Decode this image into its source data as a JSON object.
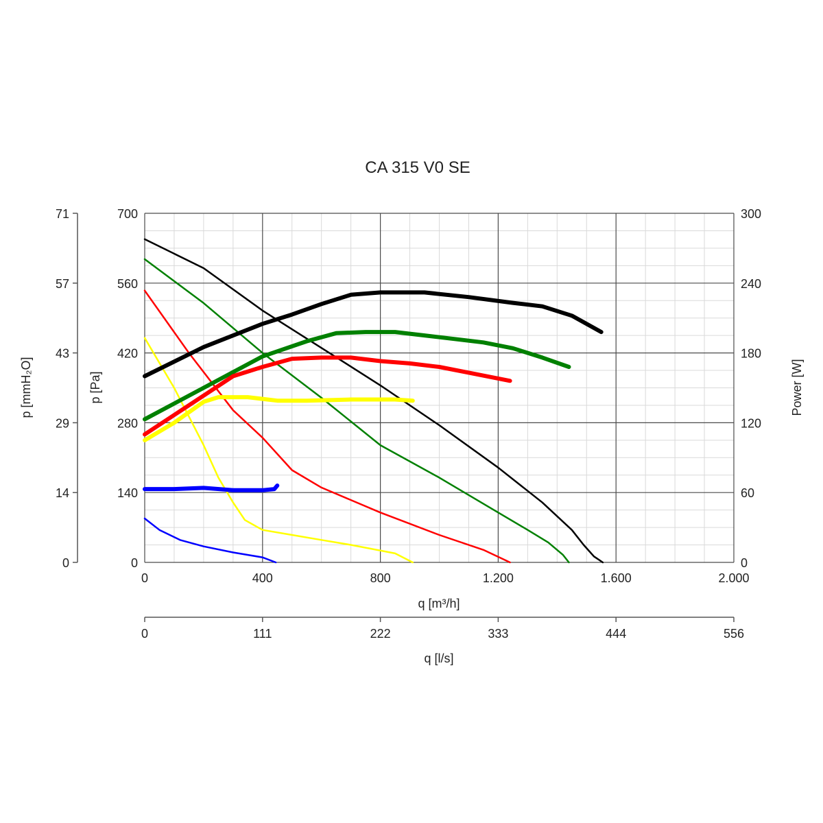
{
  "chart_data": {
    "type": "line",
    "title": "CA 315 V0 SE",
    "x_axis": {
      "label": "q [m³/h]",
      "range": [
        0,
        2000
      ],
      "ticks": [
        0,
        400,
        800,
        1200,
        1600,
        2000
      ],
      "tick_labels": [
        "0",
        "400",
        "800",
        "1.200",
        "1.600",
        "2.000"
      ]
    },
    "x2_axis": {
      "label": "q [l/s]",
      "tick_labels": [
        "0",
        "111",
        "222",
        "333",
        "444",
        "556"
      ]
    },
    "y_axis": {
      "label": "p [Pa]",
      "range": [
        0,
        700
      ],
      "ticks": [
        0,
        140,
        280,
        420,
        560,
        700
      ],
      "tick_labels": [
        "0",
        "140",
        "280",
        "420",
        "560",
        "700"
      ]
    },
    "y_left2_axis": {
      "label": "p [mmH₂O]",
      "tick_labels": [
        "0",
        "14",
        "29",
        "43",
        "57",
        "71"
      ]
    },
    "y_right_axis": {
      "label": "Power [W]",
      "range": [
        0,
        300
      ],
      "ticks": [
        0,
        60,
        120,
        180,
        240,
        300
      ],
      "tick_labels": [
        "0",
        "60",
        "120",
        "180",
        "240",
        "300"
      ]
    },
    "grid": true,
    "legend": "none",
    "series": [
      {
        "kind": "pressure",
        "color": "#000000",
        "x": [
          0,
          200,
          400,
          600,
          800,
          1000,
          1200,
          1350,
          1450,
          1490,
          1525,
          1555
        ],
        "y": [
          648,
          590,
          505,
          430,
          355,
          275,
          190,
          120,
          65,
          35,
          12,
          0
        ]
      },
      {
        "kind": "pressure",
        "color": "#008000",
        "x": [
          0,
          200,
          400,
          600,
          800,
          1000,
          1200,
          1300,
          1370,
          1420,
          1440
        ],
        "y": [
          608,
          520,
          420,
          330,
          235,
          170,
          100,
          65,
          40,
          15,
          0
        ]
      },
      {
        "kind": "pressure",
        "color": "#ff0000",
        "x": [
          0,
          150,
          300,
          400,
          500,
          600,
          800,
          1000,
          1150,
          1240
        ],
        "y": [
          545,
          420,
          305,
          250,
          185,
          150,
          100,
          55,
          25,
          0
        ]
      },
      {
        "kind": "pressure",
        "color": "#ffff00",
        "x": [
          0,
          100,
          200,
          250,
          300,
          340,
          400,
          500,
          600,
          700,
          850,
          910
        ],
        "y": [
          450,
          350,
          235,
          170,
          120,
          85,
          65,
          55,
          45,
          35,
          18,
          0
        ]
      },
      {
        "kind": "pressure",
        "color": "#0000ff",
        "x": [
          0,
          50,
          120,
          200,
          300,
          400,
          445
        ],
        "y": [
          88,
          65,
          45,
          32,
          20,
          10,
          0
        ]
      },
      {
        "kind": "power",
        "color": "#000000",
        "x": [
          0,
          200,
          400,
          500,
          600,
          700,
          800,
          950,
          1100,
          1250,
          1350,
          1450,
          1550
        ],
        "y": [
          160,
          185,
          205,
          213,
          222,
          230,
          232,
          232,
          228,
          223,
          220,
          212,
          198
        ]
      },
      {
        "kind": "power",
        "color": "#008000",
        "x": [
          0,
          200,
          400,
          550,
          650,
          750,
          850,
          950,
          1050,
          1150,
          1250,
          1350,
          1440
        ],
        "y": [
          123,
          150,
          177,
          190,
          197,
          198,
          198,
          195,
          192,
          189,
          184,
          176,
          168
        ]
      },
      {
        "kind": "power",
        "color": "#ff0000",
        "x": [
          0,
          150,
          300,
          400,
          500,
          600,
          700,
          800,
          900,
          1000,
          1100,
          1240
        ],
        "y": [
          110,
          135,
          160,
          168,
          175,
          176,
          176,
          173,
          171,
          168,
          163,
          156
        ]
      },
      {
        "kind": "power",
        "color": "#ffff00",
        "x": [
          0,
          100,
          200,
          250,
          350,
          450,
          550,
          700,
          850,
          910
        ],
        "y": [
          105,
          120,
          138,
          142,
          142,
          139,
          139,
          140,
          140,
          139
        ]
      },
      {
        "kind": "power",
        "color": "#0000ff",
        "x": [
          0,
          100,
          200,
          300,
          400,
          440,
          450
        ],
        "y": [
          63,
          63,
          64,
          62,
          62,
          63,
          66
        ]
      }
    ]
  }
}
